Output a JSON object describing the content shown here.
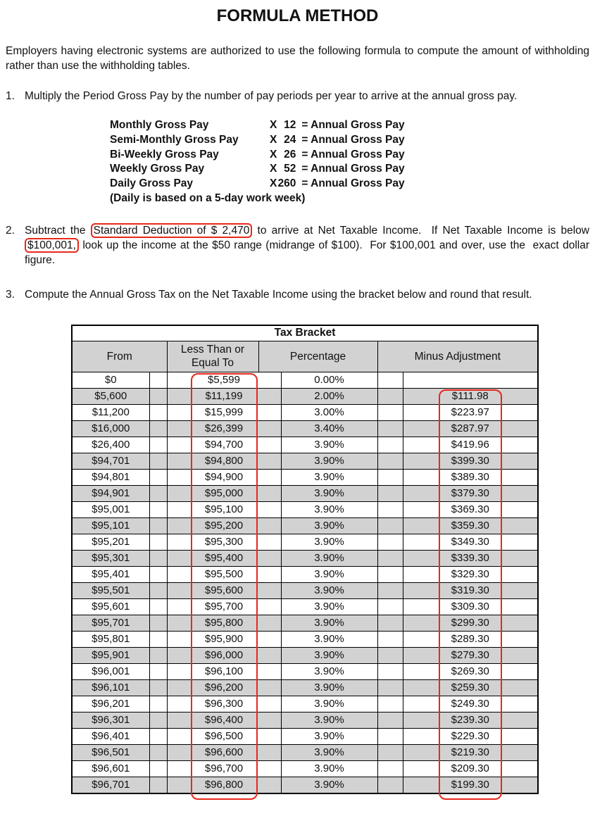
{
  "title": "FORMULA METHOD",
  "intro": "Employers having electronic systems are authorized to use the following formula to compute the amount of withholding rather than use the withholding tables.",
  "item1": {
    "number": "1.",
    "text": "Multiply the Period Gross Pay by the number of pay periods per year to arrive at the annual gross pay."
  },
  "pay_periods": {
    "x_symbol": "X",
    "equals_text": "= Annual Gross Pay",
    "rows": [
      {
        "label": "Monthly Gross Pay",
        "factor": "12"
      },
      {
        "label": "Semi-Monthly Gross Pay",
        "factor": "24"
      },
      {
        "label": "Bi-Weekly Gross Pay",
        "factor": "26"
      },
      {
        "label": "Weekly Gross Pay",
        "factor": "52"
      },
      {
        "label": "Daily Gross Pay",
        "factor": "260"
      }
    ],
    "note": "(Daily is based on a 5-day work week)"
  },
  "item2": {
    "number": "2.",
    "pre": "Subtract the ",
    "boxed1": "Standard Deduction of $ 2,470",
    "mid": " to arrive at Net Taxable Income.  If Net Taxable Income is below ",
    "boxed2": "$100,001,",
    "post": " look up the income at the $50 range (midrange of $100).  For $100,001 and over, use the  exact dollar figure."
  },
  "item3": {
    "number": "3.",
    "text": "Compute the Annual Gross Tax on the Net Taxable Income using the bracket below and round that result."
  },
  "tax_bracket": {
    "title": "Tax Bracket",
    "col_headers": [
      "From",
      "Less Than or Equal To",
      "Percentage",
      "Minus Adjustment"
    ],
    "rows": [
      {
        "from": "$0",
        "less_than_or_equal_to": "$5,599",
        "percentage": "0.00%",
        "minus_adjustment": ""
      },
      {
        "from": "$5,600",
        "less_than_or_equal_to": "$11,199",
        "percentage": "2.00%",
        "minus_adjustment": "$111.98"
      },
      {
        "from": "$11,200",
        "less_than_or_equal_to": "$15,999",
        "percentage": "3.00%",
        "minus_adjustment": "$223.97"
      },
      {
        "from": "$16,000",
        "less_than_or_equal_to": "$26,399",
        "percentage": "3.40%",
        "minus_adjustment": "$287.97"
      },
      {
        "from": "$26,400",
        "less_than_or_equal_to": "$94,700",
        "percentage": "3.90%",
        "minus_adjustment": "$419.96"
      },
      {
        "from": "$94,701",
        "less_than_or_equal_to": "$94,800",
        "percentage": "3.90%",
        "minus_adjustment": "$399.30"
      },
      {
        "from": "$94,801",
        "less_than_or_equal_to": "$94,900",
        "percentage": "3.90%",
        "minus_adjustment": "$389.30"
      },
      {
        "from": "$94,901",
        "less_than_or_equal_to": "$95,000",
        "percentage": "3.90%",
        "minus_adjustment": "$379.30"
      },
      {
        "from": "$95,001",
        "less_than_or_equal_to": "$95,100",
        "percentage": "3.90%",
        "minus_adjustment": "$369.30"
      },
      {
        "from": "$95,101",
        "less_than_or_equal_to": "$95,200",
        "percentage": "3.90%",
        "minus_adjustment": "$359.30"
      },
      {
        "from": "$95,201",
        "less_than_or_equal_to": "$95,300",
        "percentage": "3.90%",
        "minus_adjustment": "$349.30"
      },
      {
        "from": "$95,301",
        "less_than_or_equal_to": "$95,400",
        "percentage": "3.90%",
        "minus_adjustment": "$339.30"
      },
      {
        "from": "$95,401",
        "less_than_or_equal_to": "$95,500",
        "percentage": "3.90%",
        "minus_adjustment": "$329.30"
      },
      {
        "from": "$95,501",
        "less_than_or_equal_to": "$95,600",
        "percentage": "3.90%",
        "minus_adjustment": "$319.30"
      },
      {
        "from": "$95,601",
        "less_than_or_equal_to": "$95,700",
        "percentage": "3.90%",
        "minus_adjustment": "$309.30"
      },
      {
        "from": "$95,701",
        "less_than_or_equal_to": "$95,800",
        "percentage": "3.90%",
        "minus_adjustment": "$299.30"
      },
      {
        "from": "$95,801",
        "less_than_or_equal_to": "$95,900",
        "percentage": "3.90%",
        "minus_adjustment": "$289.30"
      },
      {
        "from": "$95,901",
        "less_than_or_equal_to": "$96,000",
        "percentage": "3.90%",
        "minus_adjustment": "$279.30"
      },
      {
        "from": "$96,001",
        "less_than_or_equal_to": "$96,100",
        "percentage": "3.90%",
        "minus_adjustment": "$269.30"
      },
      {
        "from": "$96,101",
        "less_than_or_equal_to": "$96,200",
        "percentage": "3.90%",
        "minus_adjustment": "$259.30"
      },
      {
        "from": "$96,201",
        "less_than_or_equal_to": "$96,300",
        "percentage": "3.90%",
        "minus_adjustment": "$249.30"
      },
      {
        "from": "$96,301",
        "less_than_or_equal_to": "$96,400",
        "percentage": "3.90%",
        "minus_adjustment": "$239.30"
      },
      {
        "from": "$96,401",
        "less_than_or_equal_to": "$96,500",
        "percentage": "3.90%",
        "minus_adjustment": "$229.30"
      },
      {
        "from": "$96,501",
        "less_than_or_equal_to": "$96,600",
        "percentage": "3.90%",
        "minus_adjustment": "$219.30"
      },
      {
        "from": "$96,601",
        "less_than_or_equal_to": "$96,700",
        "percentage": "3.90%",
        "minus_adjustment": "$209.30"
      },
      {
        "from": "$96,701",
        "less_than_or_equal_to": "$96,800",
        "percentage": "3.90%",
        "minus_adjustment": "$199.30"
      }
    ]
  },
  "colors": {
    "annotation_red": "#e8281c",
    "row_shade": "#d2d2d2"
  }
}
